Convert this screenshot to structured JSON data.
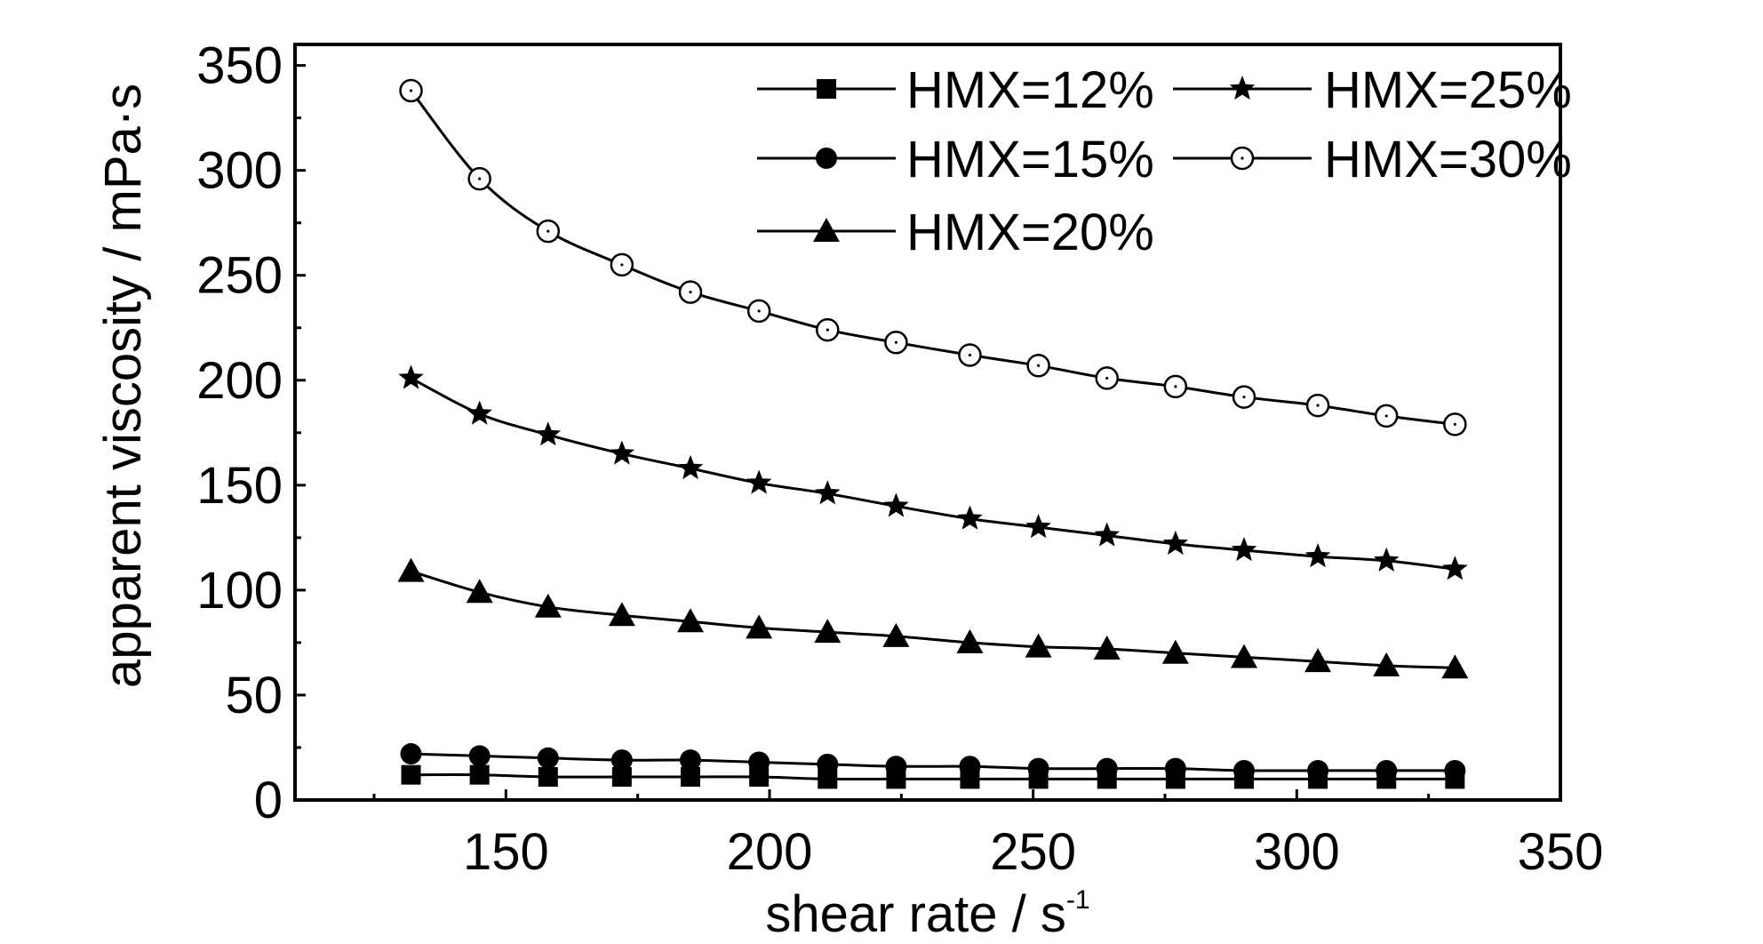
{
  "chart_data": {
    "type": "line",
    "xlabel": "shear rate / s",
    "xlabel_superscript": "-1",
    "ylabel": "apparent viscosity / mPa·s",
    "xlim": [
      110,
      350
    ],
    "ylim": [
      0,
      360
    ],
    "xticks": [
      150,
      200,
      250,
      300,
      350
    ],
    "yticks": [
      0,
      50,
      100,
      150,
      200,
      250,
      300,
      350
    ],
    "grid": false,
    "legend_position": "top-right",
    "x": [
      132,
      145,
      158,
      172,
      185,
      198,
      211,
      224,
      238,
      251,
      264,
      277,
      290,
      304,
      317,
      330
    ],
    "series": [
      {
        "name": "HMX=12%",
        "marker": "square",
        "color": "#000000",
        "values": [
          12,
          12,
          11,
          11,
          11,
          11,
          10,
          10,
          10,
          10,
          10,
          10,
          10,
          10,
          10,
          10
        ]
      },
      {
        "name": "HMX=15%",
        "marker": "circle",
        "color": "#000000",
        "values": [
          22,
          21,
          20,
          19,
          19,
          18,
          17,
          16,
          16,
          15,
          15,
          15,
          14,
          14,
          14,
          14
        ]
      },
      {
        "name": "HMX=20%",
        "marker": "triangle",
        "color": "#000000",
        "values": [
          109,
          99,
          92,
          88,
          85,
          82,
          80,
          78,
          75,
          73,
          72,
          70,
          68,
          66,
          64,
          63
        ]
      },
      {
        "name": "HMX=25%",
        "marker": "star",
        "color": "#000000",
        "values": [
          201,
          184,
          174,
          165,
          158,
          151,
          146,
          140,
          134,
          130,
          126,
          122,
          119,
          116,
          114,
          110
        ]
      },
      {
        "name": "HMX=30%",
        "marker": "open-circle",
        "color": "#000000",
        "values": [
          338,
          296,
          271,
          255,
          242,
          233,
          224,
          218,
          212,
          207,
          201,
          197,
          192,
          188,
          183,
          179
        ]
      }
    ]
  }
}
